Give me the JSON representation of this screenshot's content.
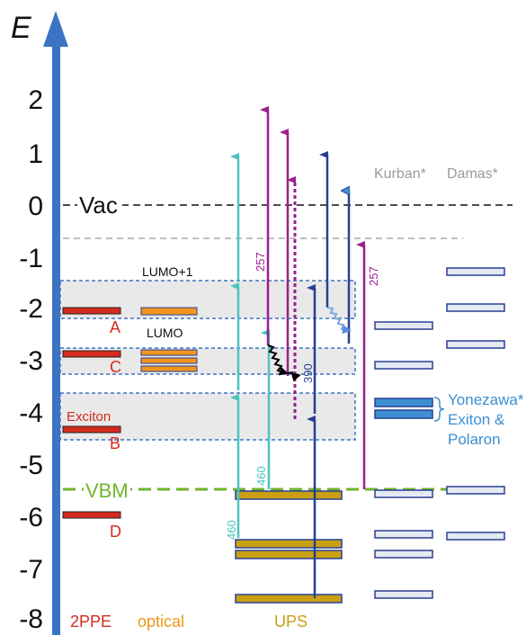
{
  "axis": {
    "label": "E",
    "ticks": [
      "2",
      "1",
      "0",
      "-1",
      "-2",
      "-3",
      "-4",
      "-5",
      "-6",
      "-7",
      "-8"
    ]
  },
  "levels": {
    "vac": "Vac",
    "vbm": "VBM",
    "lumo_plus1": "LUMO+1",
    "lumo": "LUMO"
  },
  "twoppe": {
    "labels": [
      "A",
      "C",
      "B",
      "D"
    ],
    "exciton": "Exciton",
    "column": "2PPE"
  },
  "optical": {
    "column": "optical"
  },
  "ups": {
    "column": "UPS"
  },
  "refs": {
    "kurban": "Kurban*",
    "damas": "Damas*",
    "yonezawa": "Yonezawa*",
    "exiton": "Exiton &",
    "polaron": "Polaron"
  },
  "photon_labels": {
    "e257a": "257",
    "e257b": "257",
    "e390": "390",
    "e460a": "460",
    "e460b": "460"
  },
  "colors": {
    "axis": "#3c73c2",
    "red": "#d52b1e",
    "orange": "#f0951c",
    "gold": "#c9a012",
    "teal": "#4cc4c0",
    "purple": "#9b1f8c",
    "navy": "#2a3f94",
    "vbm": "#6fb52c"
  }
}
